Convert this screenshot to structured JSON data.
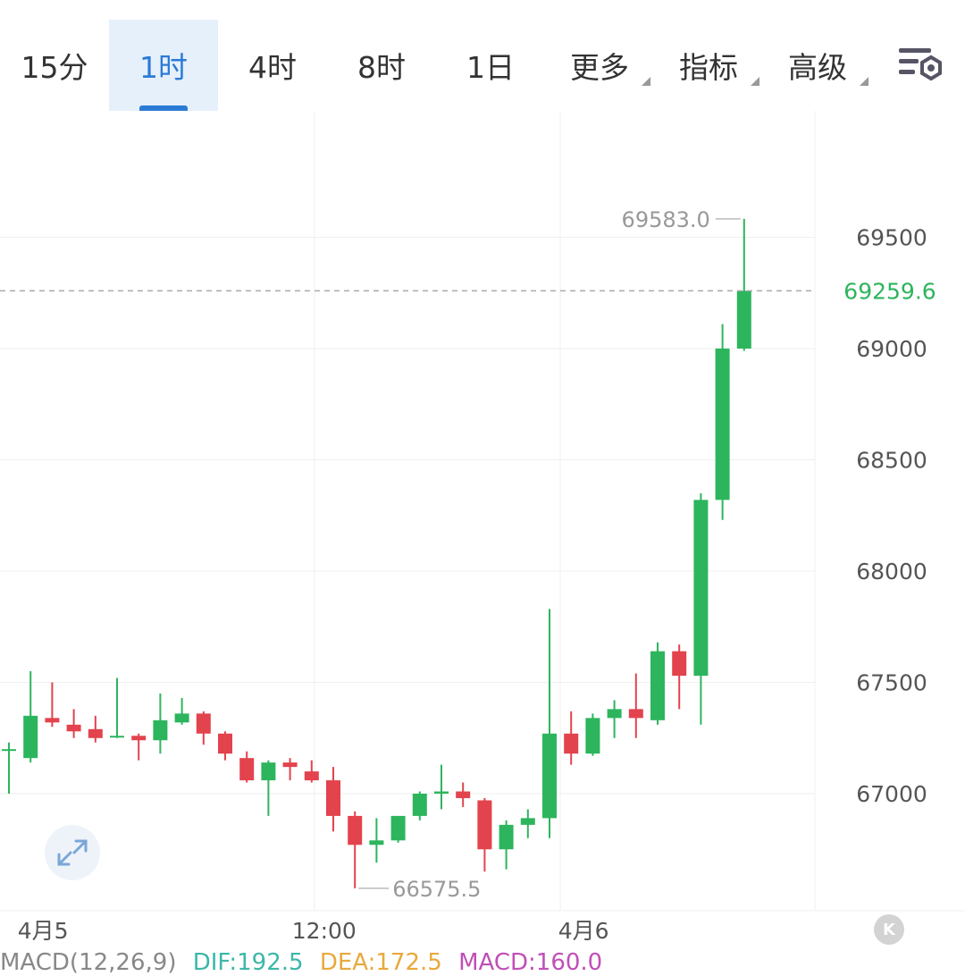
{
  "tabs": [
    {
      "label": "15分",
      "active": false,
      "dropdown": false
    },
    {
      "label": "1时",
      "active": true,
      "dropdown": false
    },
    {
      "label": "4时",
      "active": false,
      "dropdown": false
    },
    {
      "label": "8时",
      "active": false,
      "dropdown": false
    },
    {
      "label": "1日",
      "active": false,
      "dropdown": false
    },
    {
      "label": "更多",
      "active": false,
      "dropdown": true
    },
    {
      "label": "指标",
      "active": false,
      "dropdown": true
    },
    {
      "label": "高级",
      "active": false,
      "dropdown": true
    }
  ],
  "settings_icon": "chart-settings-icon",
  "expand_icon": "expand-arrows-icon",
  "scroll_icon": "scroll-to-latest-icon",
  "scroll_label": "K",
  "colors": {
    "up": "#2db55d",
    "down": "#e2434d",
    "grid": "#efefef",
    "axis_text": "#555555",
    "accent": "#2b7bd6"
  },
  "macd": {
    "label": "MACD(12,26,9)",
    "dif": "DIF:192.5",
    "dea": "DEA:172.5",
    "macd": "MACD:160.0",
    "colors": {
      "label": "#888888",
      "dif": "#3cb7a8",
      "dea": "#e8a93b",
      "macd": "#c04fb7"
    }
  },
  "chart_data": {
    "type": "candlestick",
    "ylim": [
      66400,
      69900
    ],
    "y_ticks": [
      67000,
      67500,
      68000,
      68500,
      69000,
      69500
    ],
    "x_labels": [
      {
        "label": "4月5",
        "index": 1
      },
      {
        "label": "12:00",
        "index": 14
      },
      {
        "label": "4月6",
        "index": 26
      }
    ],
    "current_price": "69259.6",
    "high_label": "69583.0",
    "high_index": 34,
    "low_label": "66575.5",
    "low_index": 16,
    "candles": [
      {
        "o": 67200,
        "h": 67230,
        "l": 67000,
        "c": 67200
      },
      {
        "o": 67160,
        "h": 67550,
        "l": 67140,
        "c": 67350
      },
      {
        "o": 67340,
        "h": 67500,
        "l": 67300,
        "c": 67320
      },
      {
        "o": 67310,
        "h": 67380,
        "l": 67250,
        "c": 67280
      },
      {
        "o": 67290,
        "h": 67350,
        "l": 67230,
        "c": 67250
      },
      {
        "o": 67260,
        "h": 67520,
        "l": 67250,
        "c": 67260
      },
      {
        "o": 67260,
        "h": 67270,
        "l": 67150,
        "c": 67240
      },
      {
        "o": 67240,
        "h": 67450,
        "l": 67180,
        "c": 67330
      },
      {
        "o": 67320,
        "h": 67430,
        "l": 67310,
        "c": 67360
      },
      {
        "o": 67360,
        "h": 67370,
        "l": 67220,
        "c": 67270
      },
      {
        "o": 67270,
        "h": 67280,
        "l": 67150,
        "c": 67180
      },
      {
        "o": 67160,
        "h": 67190,
        "l": 67050,
        "c": 67060
      },
      {
        "o": 67060,
        "h": 67150,
        "l": 66900,
        "c": 67140
      },
      {
        "o": 67140,
        "h": 67160,
        "l": 67060,
        "c": 67120
      },
      {
        "o": 67100,
        "h": 67150,
        "l": 67050,
        "c": 67060
      },
      {
        "o": 67060,
        "h": 67120,
        "l": 66830,
        "c": 66900
      },
      {
        "o": 66900,
        "h": 66920,
        "l": 66575,
        "c": 66770
      },
      {
        "o": 66770,
        "h": 66890,
        "l": 66690,
        "c": 66790
      },
      {
        "o": 66790,
        "h": 66900,
        "l": 66780,
        "c": 66900
      },
      {
        "o": 66900,
        "h": 67010,
        "l": 66880,
        "c": 67000
      },
      {
        "o": 67000,
        "h": 67130,
        "l": 66930,
        "c": 67010
      },
      {
        "o": 67010,
        "h": 67050,
        "l": 66940,
        "c": 66980
      },
      {
        "o": 66970,
        "h": 66980,
        "l": 66650,
        "c": 66750
      },
      {
        "o": 66750,
        "h": 66880,
        "l": 66660,
        "c": 66860
      },
      {
        "o": 66860,
        "h": 66930,
        "l": 66800,
        "c": 66890
      },
      {
        "o": 66890,
        "h": 67830,
        "l": 66800,
        "c": 67270
      },
      {
        "o": 67270,
        "h": 67370,
        "l": 67130,
        "c": 67180
      },
      {
        "o": 67180,
        "h": 67360,
        "l": 67170,
        "c": 67340
      },
      {
        "o": 67340,
        "h": 67420,
        "l": 67250,
        "c": 67380
      },
      {
        "o": 67380,
        "h": 67540,
        "l": 67250,
        "c": 67340
      },
      {
        "o": 67330,
        "h": 67680,
        "l": 67310,
        "c": 67640
      },
      {
        "o": 67640,
        "h": 67670,
        "l": 67380,
        "c": 67530
      },
      {
        "o": 67530,
        "h": 68350,
        "l": 67310,
        "c": 68320
      },
      {
        "o": 68320,
        "h": 69110,
        "l": 68230,
        "c": 69000
      },
      {
        "o": 69000,
        "h": 69583,
        "l": 68990,
        "c": 69259.6
      }
    ]
  }
}
